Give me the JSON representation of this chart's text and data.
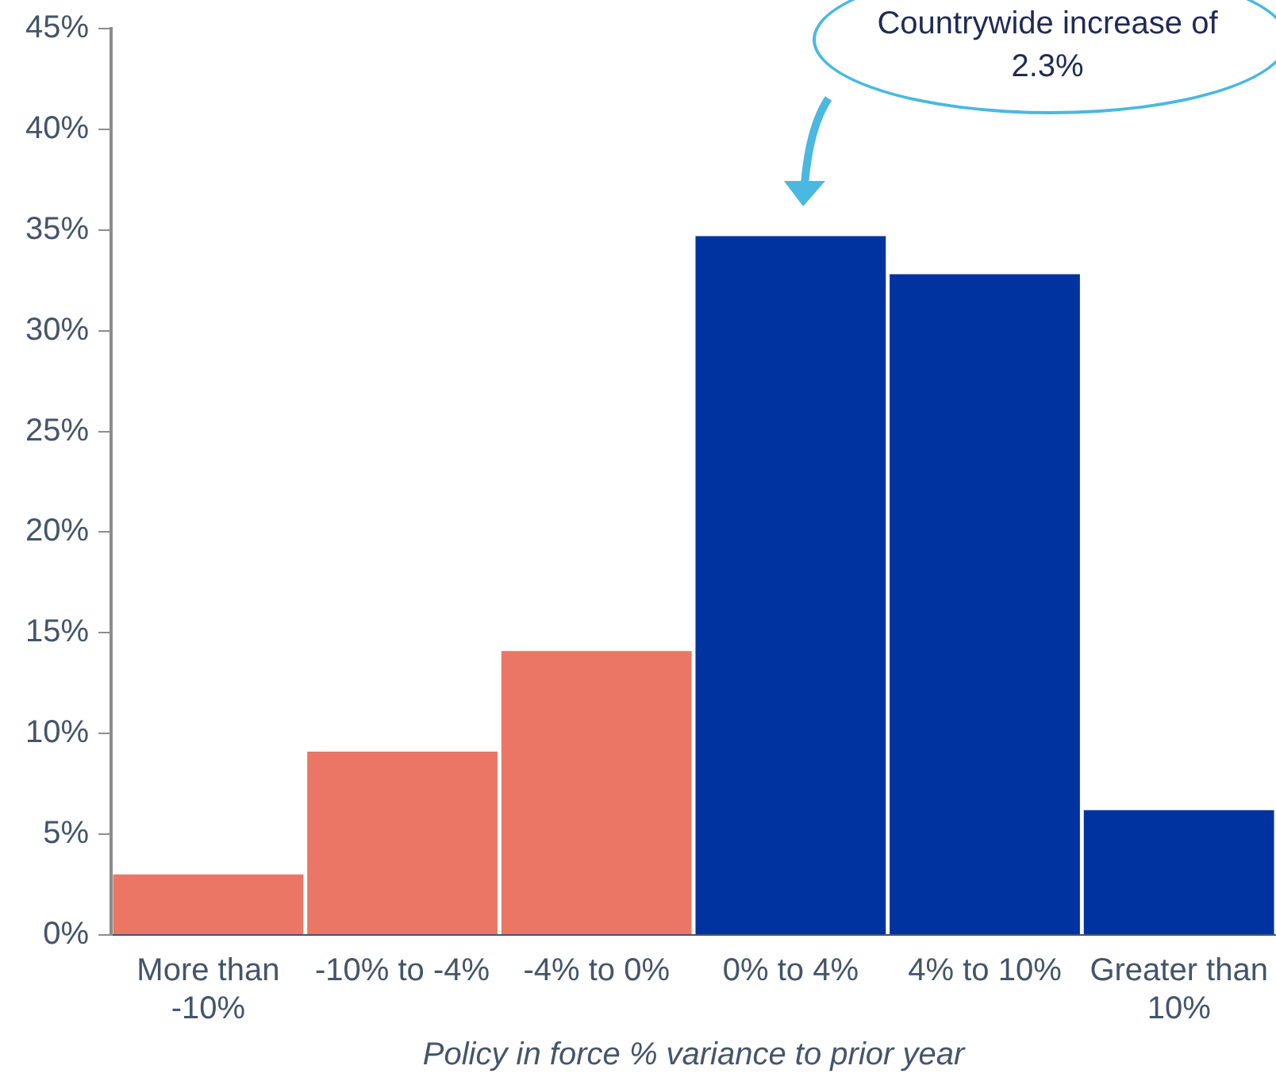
{
  "chart_data": {
    "type": "bar",
    "categories": [
      "More than -10%",
      "-10% to -4%",
      "-4% to 0%",
      "0% to 4%",
      "4% to 10%",
      "Greater than 10%"
    ],
    "values": [
      3.0,
      9.1,
      14.1,
      34.7,
      32.8,
      6.2
    ],
    "colors": [
      "#eb7665",
      "#eb7665",
      "#eb7665",
      "#0033a0",
      "#0033a0",
      "#0033a0"
    ],
    "xlabel": "Policy in force % variance to prior year",
    "ylim": [
      0,
      45
    ],
    "yticks": [
      {
        "value": 0,
        "label": "0%"
      },
      {
        "value": 5,
        "label": "5%"
      },
      {
        "value": 10,
        "label": "10%"
      },
      {
        "value": 15,
        "label": "15%"
      },
      {
        "value": 20,
        "label": "20%"
      },
      {
        "value": 25,
        "label": "25%"
      },
      {
        "value": 30,
        "label": "30%"
      },
      {
        "value": 35,
        "label": "35%"
      },
      {
        "value": 40,
        "label": "40%"
      },
      {
        "value": 45,
        "label": "45%"
      }
    ],
    "annotations": [
      "Countrywide increase of 2.3%"
    ],
    "legend": false,
    "grid": false
  }
}
